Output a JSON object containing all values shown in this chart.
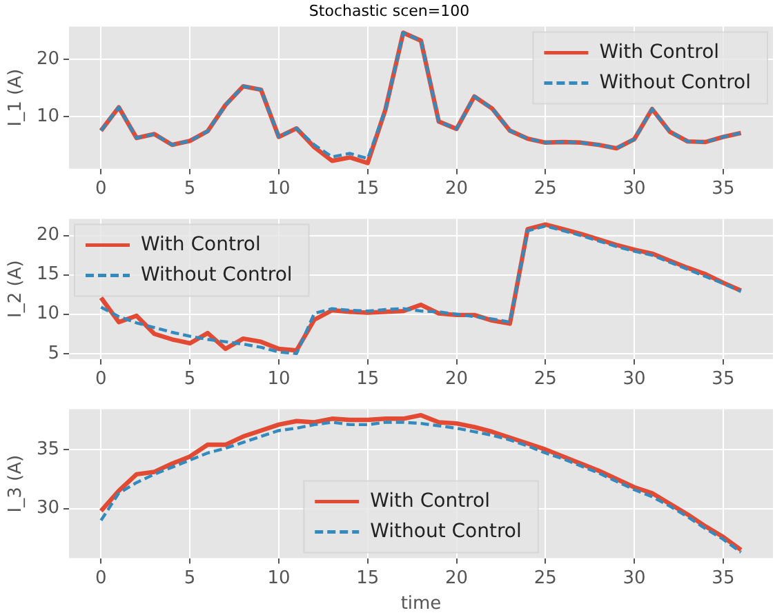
{
  "chart_data": [
    {
      "type": "line",
      "title": "Stochastic scen=100",
      "ylabel": "I_1 (A)",
      "x": [
        0,
        1,
        2,
        3,
        4,
        5,
        6,
        7,
        8,
        9,
        10,
        11,
        12,
        13,
        14,
        15,
        16,
        17,
        18,
        19,
        20,
        21,
        22,
        23,
        24,
        25,
        26,
        27,
        28,
        29,
        30,
        31,
        32,
        33,
        34,
        35,
        36
      ],
      "xlim": [
        -1.8,
        37.8
      ],
      "xticks": [
        0,
        5,
        10,
        15,
        20,
        25,
        30,
        35
      ],
      "ylim": [
        0.8,
        25.8
      ],
      "yticks": [
        10,
        20
      ],
      "grid": true,
      "legend": "top right",
      "series": [
        {
          "name": "With Control",
          "color": "#e24a33",
          "line_style": "solid",
          "values": [
            7.5,
            11.6,
            6.2,
            6.9,
            5.0,
            5.7,
            7.4,
            12.0,
            15.3,
            14.7,
            6.4,
            7.9,
            4.6,
            2.2,
            2.8,
            1.8,
            11.2,
            24.7,
            23.3,
            9.1,
            7.8,
            13.5,
            11.4,
            7.5,
            6.1,
            5.4,
            5.5,
            5.4,
            5.0,
            4.4,
            6.0,
            11.3,
            7.3,
            5.6,
            5.5,
            6.4,
            7.1
          ]
        },
        {
          "name": "Without Control",
          "color": "#348abd",
          "line_style": "dashed",
          "values": [
            7.5,
            11.6,
            6.2,
            6.9,
            5.0,
            5.7,
            7.4,
            12.0,
            15.3,
            14.7,
            6.4,
            7.9,
            5.0,
            2.9,
            3.5,
            2.6,
            11.2,
            24.7,
            23.3,
            9.1,
            7.8,
            13.5,
            11.4,
            7.5,
            6.1,
            5.4,
            5.5,
            5.4,
            5.0,
            4.4,
            6.0,
            11.3,
            7.3,
            5.6,
            5.5,
            6.4,
            7.1
          ]
        }
      ]
    },
    {
      "type": "line",
      "ylabel": "I_2 (A)",
      "x": [
        0,
        1,
        2,
        3,
        4,
        5,
        6,
        7,
        8,
        9,
        10,
        11,
        12,
        13,
        14,
        15,
        16,
        17,
        18,
        19,
        20,
        21,
        22,
        23,
        24,
        25,
        26,
        27,
        28,
        29,
        30,
        31,
        32,
        33,
        34,
        35,
        36
      ],
      "xlim": [
        -1.8,
        37.8
      ],
      "xticks": [
        0,
        5,
        10,
        15,
        20,
        25,
        30,
        35
      ],
      "ylim": [
        4.3,
        22.1
      ],
      "yticks": [
        5,
        10,
        15,
        20
      ],
      "grid": true,
      "legend": "top left",
      "series": [
        {
          "name": "With Control",
          "color": "#e24a33",
          "line_style": "solid",
          "values": [
            12.1,
            9.0,
            9.8,
            7.5,
            6.8,
            6.3,
            7.6,
            5.6,
            6.9,
            6.5,
            5.6,
            5.4,
            9.3,
            10.5,
            10.3,
            10.2,
            10.3,
            10.4,
            11.2,
            10.1,
            9.9,
            9.9,
            9.2,
            8.8,
            20.8,
            21.4,
            20.8,
            20.2,
            19.5,
            18.8,
            18.2,
            17.7,
            16.8,
            15.9,
            15.1,
            14.0,
            13.0
          ]
        },
        {
          "name": "Without Control",
          "color": "#348abd",
          "line_style": "dashed",
          "values": [
            10.9,
            9.7,
            8.9,
            8.3,
            7.7,
            7.2,
            6.8,
            6.5,
            6.2,
            5.8,
            5.2,
            5.0,
            10.1,
            10.7,
            10.5,
            10.4,
            10.6,
            10.7,
            10.4,
            10.3,
            10.0,
            9.7,
            9.4,
            9.0,
            20.6,
            21.2,
            20.6,
            20.0,
            19.3,
            18.6,
            18.0,
            17.5,
            16.6,
            15.7,
            14.8,
            13.9,
            12.9
          ]
        }
      ]
    },
    {
      "type": "line",
      "xlabel": "time",
      "ylabel": "I_3 (A)",
      "x": [
        0,
        1,
        2,
        3,
        4,
        5,
        6,
        7,
        8,
        9,
        10,
        11,
        12,
        13,
        14,
        15,
        16,
        17,
        18,
        19,
        20,
        21,
        22,
        23,
        24,
        25,
        26,
        27,
        28,
        29,
        30,
        31,
        32,
        33,
        34,
        35,
        36
      ],
      "xlim": [
        -1.8,
        37.8
      ],
      "xticks": [
        0,
        5,
        10,
        15,
        20,
        25,
        30,
        35
      ],
      "ylim": [
        25.8,
        38.4
      ],
      "yticks": [
        30,
        35
      ],
      "grid": true,
      "legend": "bottom",
      "series": [
        {
          "name": "With Control",
          "color": "#e24a33",
          "line_style": "solid",
          "values": [
            29.8,
            31.5,
            32.9,
            33.1,
            33.8,
            34.4,
            35.4,
            35.4,
            36.1,
            36.6,
            37.1,
            37.4,
            37.3,
            37.6,
            37.5,
            37.5,
            37.6,
            37.6,
            37.9,
            37.3,
            37.2,
            36.9,
            36.5,
            36.0,
            35.5,
            35.0,
            34.4,
            33.8,
            33.2,
            32.5,
            31.8,
            31.3,
            30.4,
            29.5,
            28.5,
            27.6,
            26.5
          ]
        },
        {
          "name": "Without Control",
          "color": "#348abd",
          "line_style": "dashed",
          "values": [
            29.0,
            31.3,
            32.2,
            32.9,
            33.5,
            34.1,
            34.7,
            35.1,
            35.6,
            36.1,
            36.6,
            36.8,
            37.1,
            37.3,
            37.1,
            37.1,
            37.3,
            37.3,
            37.2,
            37.0,
            36.8,
            36.5,
            36.2,
            35.8,
            35.3,
            34.7,
            34.2,
            33.6,
            33.0,
            32.3,
            31.6,
            31.0,
            30.2,
            29.3,
            28.3,
            27.4,
            26.3
          ]
        }
      ]
    }
  ]
}
